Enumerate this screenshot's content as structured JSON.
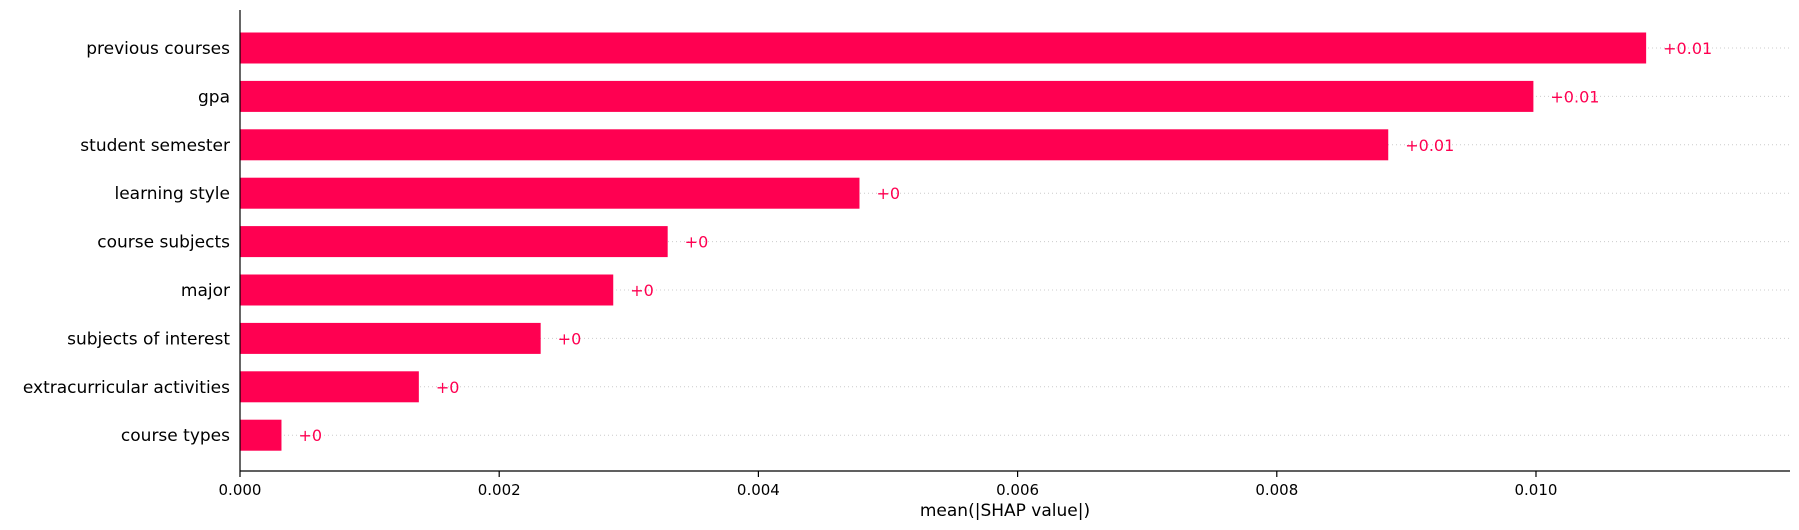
{
  "chart_data": {
    "type": "bar",
    "orientation": "horizontal",
    "categories": [
      "previous courses",
      "gpa",
      "student semester",
      "learning style",
      "course subjects",
      "major",
      "subjects of interest",
      "extracurricular activities",
      "course types"
    ],
    "values": [
      0.01085,
      0.00998,
      0.00886,
      0.00478,
      0.0033,
      0.00288,
      0.00232,
      0.00138,
      0.00032
    ],
    "value_labels": [
      "+0.01",
      "+0.01",
      "+0.01",
      "+0",
      "+0",
      "+0",
      "+0",
      "+0",
      "+0"
    ],
    "xlabel": "mean(|SHAP value|)",
    "ylabel": "",
    "xlim": [
      0,
      0.01196
    ],
    "xticks": [
      0,
      0.002,
      0.004,
      0.006,
      0.008,
      0.01
    ],
    "xtick_labels": [
      "0.000",
      "0.002",
      "0.004",
      "0.006",
      "0.008",
      "0.010"
    ],
    "bar_color": "#ff0051",
    "grid": "horizontal dotted row guides",
    "legend": "none"
  }
}
